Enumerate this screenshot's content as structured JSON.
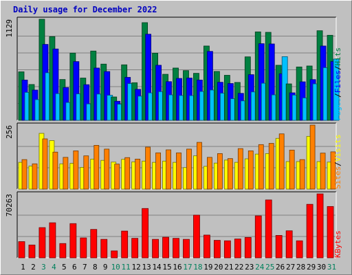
{
  "title": "Daily usage for December 2022",
  "colors": {
    "hits": "#008040",
    "files": "#0000ff",
    "pages": "#00c0ff",
    "visits": "#ffff00",
    "sites": "#ff8000",
    "kbytes": "#ff0000",
    "weekend_day": "#00805c",
    "weekday": "#000000",
    "background": "#c0c0c0",
    "title": "#0000c0"
  },
  "chart_data": [
    {
      "type": "bar",
      "panel": "hits-files-pages",
      "ymax_label": "1129",
      "ymax": 1129,
      "categories": [
        "1",
        "2",
        "3",
        "4",
        "5",
        "6",
        "7",
        "8",
        "9",
        "10",
        "11",
        "12",
        "13",
        "14",
        "15",
        "16",
        "17",
        "18",
        "19",
        "20",
        "21",
        "22",
        "23",
        "24",
        "25",
        "26",
        "27",
        "28",
        "29",
        "30",
        "31"
      ],
      "series": [
        {
          "name": "Hits",
          "values": [
            542,
            400,
            1129,
            935,
            456,
            751,
            472,
            774,
            628,
            261,
            620,
            420,
            1091,
            750,
            514,
            584,
            555,
            525,
            830,
            546,
            503,
            423,
            709,
            988,
            983,
            615,
            407,
            596,
            607,
            1001,
            950
          ]
        },
        {
          "name": "Files",
          "values": [
            450,
            338,
            848,
            797,
            366,
            656,
            398,
            584,
            545,
            213,
            480,
            346,
            962,
            615,
            432,
            468,
            472,
            450,
            770,
            425,
            411,
            301,
            510,
            856,
            853,
            520,
            307,
            430,
            455,
            830,
            657
          ]
        },
        {
          "name": "Pages",
          "values": [
            312,
            231,
            531,
            298,
            199,
            295,
            183,
            293,
            280,
            180,
            410,
            270,
            306,
            320,
            284,
            277,
            276,
            322,
            338,
            303,
            241,
            217,
            317,
            414,
            284,
            711,
            282,
            250,
            407,
            588,
            684
          ]
        }
      ],
      "legend_labels": [
        "Pages",
        "Files",
        "Hits"
      ]
    },
    {
      "type": "bar",
      "panel": "visits-sites",
      "ymax_label": "256",
      "ymax": 256,
      "categories": [
        "1",
        "2",
        "3",
        "4",
        "5",
        "6",
        "7",
        "8",
        "9",
        "10",
        "11",
        "12",
        "13",
        "14",
        "15",
        "16",
        "17",
        "18",
        "19",
        "20",
        "21",
        "22",
        "23",
        "24",
        "25",
        "26",
        "27",
        "28",
        "29",
        "30",
        "31"
      ],
      "series": [
        {
          "name": "Visits",
          "values": [
            107,
            92,
            223,
            194,
            101,
            103,
            87,
            120,
            115,
            108,
            119,
            109,
            112,
            107,
            112,
            107,
            86,
            133,
            91,
            104,
            116,
            107,
            121,
            140,
            142,
            203,
            110,
            110,
            211,
            110,
            108
          ]
        },
        {
          "name": "Sites",
          "values": [
            118,
            101,
            201,
            148,
            127,
            153,
            133,
            175,
            160,
            100,
            126,
            120,
            168,
            145,
            157,
            145,
            160,
            187,
            127,
            142,
            122,
            162,
            153,
            178,
            183,
            221,
            156,
            118,
            256,
            144,
            149
          ]
        }
      ],
      "legend_labels": [
        "Sites",
        "Visits"
      ]
    },
    {
      "type": "bar",
      "panel": "kbytes",
      "ymax_label": "70263",
      "ymax": 70263,
      "categories": [
        "1",
        "2",
        "3",
        "4",
        "5",
        "6",
        "7",
        "8",
        "9",
        "10",
        "11",
        "12",
        "13",
        "14",
        "15",
        "16",
        "17",
        "18",
        "19",
        "20",
        "21",
        "22",
        "23",
        "24",
        "25",
        "26",
        "27",
        "28",
        "29",
        "30",
        "31"
      ],
      "series": [
        {
          "name": "KBytes",
          "values": [
            17800,
            14100,
            33200,
            38500,
            15700,
            37600,
            21900,
            31200,
            20300,
            7600,
            29400,
            21400,
            54200,
            20300,
            22600,
            21400,
            20300,
            46900,
            25000,
            19200,
            18700,
            20700,
            22400,
            46100,
            63600,
            24600,
            29700,
            18700,
            58800,
            70263,
            56400
          ]
        }
      ],
      "legend_labels": [
        "KBytes"
      ]
    }
  ],
  "days": [
    "1",
    "2",
    "3",
    "4",
    "5",
    "6",
    "7",
    "8",
    "9",
    "10",
    "11",
    "12",
    "13",
    "14",
    "15",
    "16",
    "17",
    "18",
    "19",
    "20",
    "21",
    "22",
    "23",
    "24",
    "25",
    "26",
    "27",
    "28",
    "29",
    "30",
    "31"
  ],
  "weekend_days": [
    3,
    4,
    10,
    11,
    17,
    18,
    24,
    25,
    31
  ]
}
